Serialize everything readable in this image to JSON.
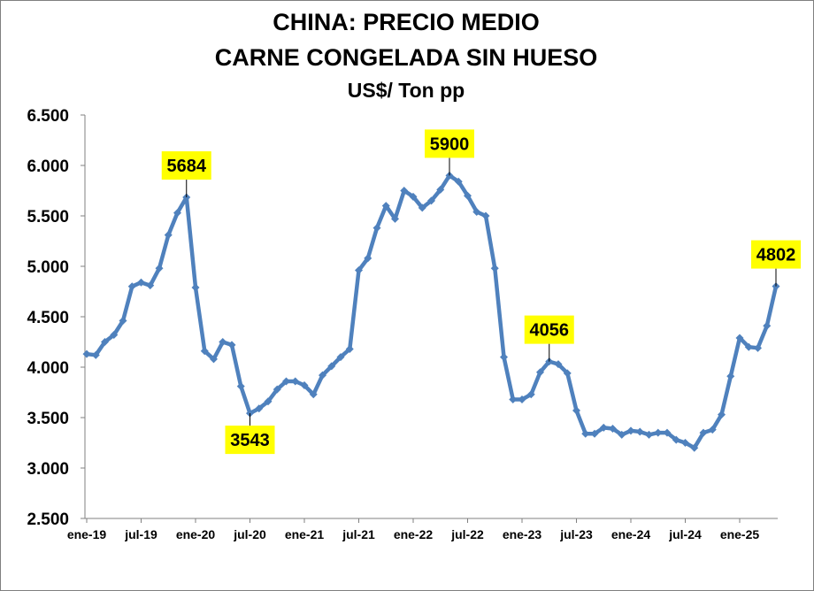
{
  "chart_data": {
    "type": "line",
    "title": "CHINA: PRECIO MEDIO",
    "subtitle": "CARNE CONGELADA SIN HUESO",
    "unit": "US$/ Ton pp",
    "xlabel": "",
    "ylabel": "",
    "ylim": [
      2500,
      6500
    ],
    "y_ticks": [
      "2.500",
      "3.000",
      "3.500",
      "4.000",
      "4.500",
      "5.000",
      "5.500",
      "6.000",
      "6.500"
    ],
    "x_ticks": [
      "ene-19",
      "jul-19",
      "ene-20",
      "jul-20",
      "ene-21",
      "jul-21",
      "ene-22",
      "jul-22",
      "ene-23",
      "jul-23",
      "ene-24",
      "jul-24",
      "ene-25"
    ],
    "grid": "none",
    "legend": "none",
    "line_color": "#4f81bd",
    "label_bg_color": "#ffff00",
    "series": [
      {
        "values": [
          4130,
          4120,
          4250,
          4320,
          4460,
          4800,
          4840,
          4810,
          4980,
          5310,
          5530,
          5684,
          4790,
          4160,
          4080,
          4250,
          4220,
          3810,
          3543,
          3590,
          3660,
          3780,
          3860,
          3860,
          3820,
          3730,
          3920,
          4010,
          4100,
          4180,
          4960,
          5080,
          5380,
          5600,
          5470,
          5750,
          5690,
          5580,
          5650,
          5760,
          5900,
          5840,
          5700,
          5540,
          5500,
          4980,
          4100,
          3680,
          3680,
          3730,
          3950,
          4056,
          4030,
          3940,
          3570,
          3340,
          3340,
          3400,
          3390,
          3330,
          3370,
          3360,
          3330,
          3350,
          3350,
          3280,
          3250,
          3200,
          3350,
          3380,
          3530,
          3910,
          4290,
          4200,
          4190,
          4410,
          4802
        ]
      }
    ],
    "annotations": [
      {
        "label": "5684",
        "index": 11,
        "value": 5684,
        "position": "above"
      },
      {
        "label": "3543",
        "index": 18,
        "value": 3543,
        "position": "below"
      },
      {
        "label": "5900",
        "index": 40,
        "value": 5900,
        "position": "above"
      },
      {
        "label": "4056",
        "index": 51,
        "value": 4056,
        "position": "above"
      },
      {
        "label": "4802",
        "index": 76,
        "value": 4802,
        "position": "above"
      }
    ]
  }
}
